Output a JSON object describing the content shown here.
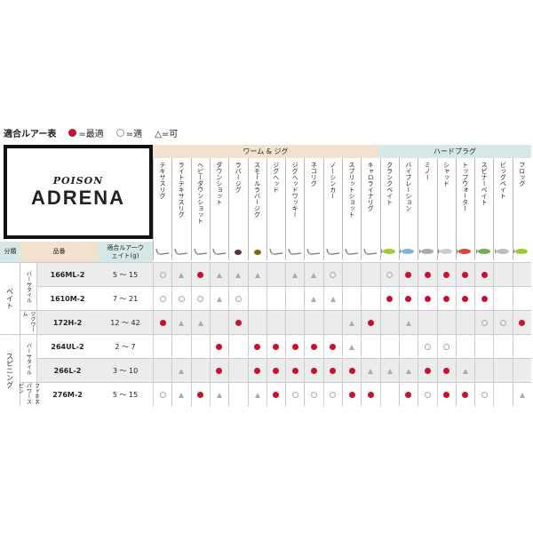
{
  "legend": {
    "title": "適合ルアー表",
    "best": "=最適",
    "good": "=適",
    "ok": "△=可",
    "colors": {
      "best": "#c8102e"
    }
  },
  "logo": {
    "sub": "POISON",
    "main": "ADRENA"
  },
  "groups": [
    {
      "label": "ワーム & ジグ",
      "color": "#f2e1cc"
    },
    {
      "label": "ハードプラグ",
      "color": "#d6e7e7"
    }
  ],
  "header": {
    "category": "分類",
    "model": "品番",
    "weight": "適合ルアーウェイト(g)"
  },
  "lures": [
    "テキサスリグ",
    "ライトテキサスリグ",
    "ヘビーダウンショット",
    "ダウンショット",
    "ラバージグ",
    "スモールラバージグ",
    "ジグヘッド",
    "ジグヘッドワッキー",
    "ネコリグ",
    "ノーシンカー",
    "スプリットショット",
    "キャロライナリグ",
    "クランクベイト",
    "バイブレーション",
    "ミノー",
    "シャッド",
    "トップウォーター",
    "スピナーベイト",
    "ビッグベイト",
    "フロッグ"
  ],
  "lure_icons": [
    "hook-icon",
    "hook-icon",
    "sinker-icon",
    "sinker-icon",
    "rubber-jig-icon",
    "small-rubber-jig-icon",
    "jighead-icon",
    "jighead-icon",
    "hook-icon",
    "hook-icon",
    "hook-icon",
    "hook-icon",
    "crankbait-icon",
    "vibration-icon",
    "minnow-icon",
    "shad-icon",
    "topwater-icon",
    "spinnerbait-icon",
    "bigbait-icon",
    "frog-icon"
  ],
  "categories": [
    {
      "label": "ベイト"
    },
    {
      "label": "スピニング"
    }
  ],
  "subcategories": [
    {
      "label": "バーサタイル"
    },
    {
      "label": "ジグワーム"
    },
    {
      "label": "バーサタイル"
    },
    {
      "label": "フィネス パワースピン"
    }
  ],
  "rows": [
    {
      "model": "166ML-2",
      "weight": "5 〜 15",
      "cells": [
        "good",
        "ok",
        "best",
        "ok",
        "ok",
        "ok",
        "",
        "ok",
        "ok",
        "good",
        "",
        "",
        "good",
        "best",
        "best",
        "best",
        "best",
        "best",
        "",
        ""
      ]
    },
    {
      "model": "1610M-2",
      "weight": "7 〜 21",
      "cells": [
        "good",
        "good",
        "good",
        "ok",
        "good",
        "",
        "",
        "",
        "ok",
        "ok",
        "",
        "",
        "best",
        "best",
        "best",
        "best",
        "best",
        "best",
        "",
        ""
      ]
    },
    {
      "model": "172H-2",
      "weight": "12 〜 42",
      "cells": [
        "best",
        "ok",
        "ok",
        "",
        "best",
        "",
        "",
        "",
        "",
        "",
        "ok",
        "best",
        "",
        "ok",
        "",
        "",
        "",
        "good",
        "good",
        "best"
      ]
    },
    {
      "model": "264UL-2",
      "weight": "2 〜 7",
      "cells": [
        "",
        "",
        "",
        "best",
        "",
        "best",
        "best",
        "best",
        "best",
        "best",
        "ok",
        "",
        "",
        "",
        "good",
        "good",
        "",
        "",
        "",
        ""
      ]
    },
    {
      "model": "266L-2",
      "weight": "3 〜 10",
      "cells": [
        "",
        "ok",
        "",
        "best",
        "",
        "best",
        "best",
        "best",
        "best",
        "best",
        "best",
        "ok",
        "ok",
        "ok",
        "best",
        "best",
        "ok",
        "",
        "",
        ""
      ]
    },
    {
      "model": "276M-2",
      "weight": "5 〜 15",
      "cells": [
        "good",
        "ok",
        "best",
        "ok",
        "",
        "ok",
        "best",
        "good",
        "good",
        "good",
        "best",
        "best",
        "",
        "best",
        "good",
        "best",
        "best",
        "good",
        "",
        "ok"
      ]
    }
  ]
}
